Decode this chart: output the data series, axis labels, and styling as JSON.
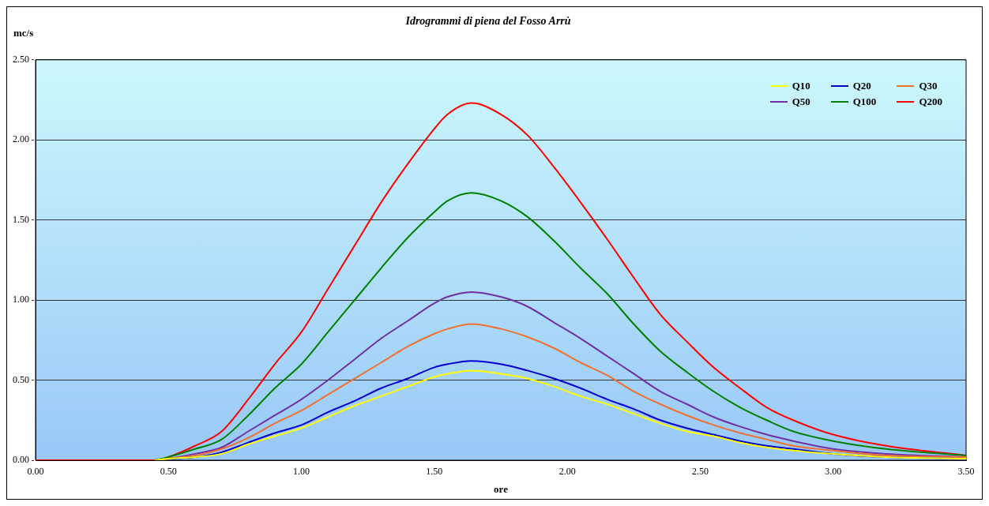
{
  "chart_data": {
    "type": "line",
    "title": "Idrogrammi di piena del Fosso Arrù",
    "xlabel": "ore",
    "ylabel": "mc/s",
    "x": [
      0,
      0.4,
      0.45,
      0.5,
      0.6,
      0.7,
      0.8,
      0.9,
      1.0,
      1.1,
      1.2,
      1.3,
      1.4,
      1.5,
      1.55,
      1.64,
      1.75,
      1.85,
      1.95,
      2.05,
      2.15,
      2.25,
      2.35,
      2.45,
      2.55,
      2.65,
      2.75,
      2.85,
      3.0,
      3.2,
      3.5
    ],
    "series": [
      {
        "name": "Q10",
        "color": "#ffff00",
        "values": [
          null,
          null,
          0,
          0.01,
          0.02,
          0.04,
          0.1,
          0.15,
          0.2,
          0.27,
          0.34,
          0.4,
          0.46,
          0.52,
          0.54,
          0.56,
          0.54,
          0.51,
          0.46,
          0.4,
          0.35,
          0.29,
          0.23,
          0.18,
          0.15,
          0.11,
          0.08,
          0.06,
          0.04,
          0.02,
          0.01
        ]
      },
      {
        "name": "Q20",
        "color": "#0000cc",
        "values": [
          null,
          null,
          null,
          0.01,
          0.02,
          0.05,
          0.11,
          0.17,
          0.22,
          0.3,
          0.37,
          0.45,
          0.51,
          0.58,
          0.6,
          0.62,
          0.6,
          0.56,
          0.51,
          0.45,
          0.38,
          0.32,
          0.25,
          0.2,
          0.16,
          0.12,
          0.09,
          0.07,
          0.04,
          0.02,
          0.01
        ]
      },
      {
        "name": "Q30",
        "color": "#f07030",
        "values": [
          null,
          null,
          0,
          0.01,
          0.03,
          0.07,
          0.14,
          0.23,
          0.31,
          0.41,
          0.51,
          0.61,
          0.71,
          0.79,
          0.82,
          0.85,
          0.82,
          0.77,
          0.7,
          0.61,
          0.53,
          0.43,
          0.35,
          0.28,
          0.22,
          0.17,
          0.13,
          0.09,
          0.06,
          0.03,
          0.02
        ]
      },
      {
        "name": "Q50",
        "color": "#7030a0",
        "values": [
          null,
          null,
          0,
          0.01,
          0.04,
          0.08,
          0.18,
          0.28,
          0.38,
          0.5,
          0.63,
          0.76,
          0.87,
          0.98,
          1.02,
          1.05,
          1.02,
          0.96,
          0.86,
          0.76,
          0.65,
          0.54,
          0.43,
          0.35,
          0.27,
          0.21,
          0.16,
          0.12,
          0.07,
          0.04,
          0.02
        ]
      },
      {
        "name": "Q100",
        "color": "#008000",
        "values": [
          null,
          null,
          0,
          0.02,
          0.07,
          0.13,
          0.28,
          0.45,
          0.6,
          0.8,
          1.0,
          1.2,
          1.39,
          1.55,
          1.62,
          1.67,
          1.62,
          1.52,
          1.37,
          1.2,
          1.04,
          0.85,
          0.68,
          0.55,
          0.43,
          0.33,
          0.25,
          0.18,
          0.12,
          0.07,
          0.03
        ]
      },
      {
        "name": "Q200",
        "color": "#ff0000",
        "values": [
          0,
          0,
          0,
          0.02,
          0.09,
          0.18,
          0.38,
          0.6,
          0.8,
          1.07,
          1.34,
          1.61,
          1.85,
          2.07,
          2.16,
          2.23,
          2.16,
          2.03,
          1.83,
          1.61,
          1.38,
          1.14,
          0.91,
          0.74,
          0.58,
          0.45,
          0.33,
          0.25,
          0.16,
          0.09,
          0.03
        ]
      }
    ],
    "xlim": [
      0,
      3.5
    ],
    "xticks": [
      {
        "value": 0,
        "label": "0.00"
      },
      {
        "value": 0.5,
        "label": "0.50"
      },
      {
        "value": 1,
        "label": "1.00"
      },
      {
        "value": 1.5,
        "label": "1.50"
      },
      {
        "value": 2,
        "label": "2.00"
      },
      {
        "value": 2.5,
        "label": "2.50"
      },
      {
        "value": 3,
        "label": "3.00"
      },
      {
        "value": 3.5,
        "label": "3.50"
      }
    ],
    "ylim": [
      0,
      2.5
    ],
    "yticks": [
      {
        "value": 0,
        "label": "0.00"
      },
      {
        "value": 0.5,
        "label": "0.50"
      },
      {
        "value": 1,
        "label": "1.00"
      },
      {
        "value": 1.5,
        "label": "1.50"
      },
      {
        "value": 2,
        "label": "2.00"
      },
      {
        "value": 2.5,
        "label": "2.50"
      }
    ],
    "grid": "y",
    "legend": "top right",
    "marker": "none",
    "line_style": "solid"
  }
}
